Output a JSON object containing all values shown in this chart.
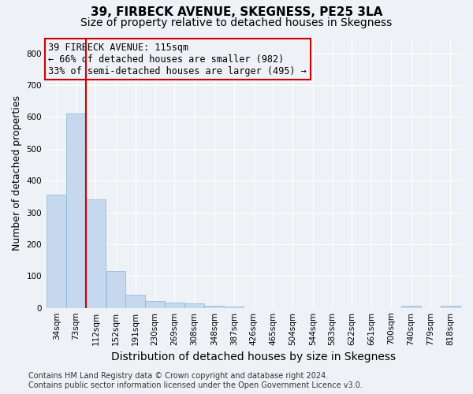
{
  "title": "39, FIRBECK AVENUE, SKEGNESS, PE25 3LA",
  "subtitle": "Size of property relative to detached houses in Skegness",
  "xlabel": "Distribution of detached houses by size in Skegness",
  "ylabel": "Number of detached properties",
  "footer1": "Contains HM Land Registry data © Crown copyright and database right 2024.",
  "footer2": "Contains public sector information licensed under the Open Government Licence v3.0.",
  "annotation_line1": "39 FIRBECK AVENUE: 115sqm",
  "annotation_line2": "← 66% of detached houses are smaller (982)",
  "annotation_line3": "33% of semi-detached houses are larger (495) →",
  "bar_color": "#c5d8ee",
  "bar_edge_color": "#8ab4d8",
  "vline_color": "#cc0000",
  "vline_x": 112,
  "bins_left": [
    34,
    73,
    112,
    152,
    191,
    230,
    269,
    308,
    348,
    387,
    426,
    465,
    504,
    544,
    583,
    622,
    661,
    700,
    740,
    779,
    818
  ],
  "counts": [
    357,
    612,
    340,
    115,
    42,
    22,
    17,
    13,
    7,
    5,
    0,
    0,
    0,
    0,
    0,
    0,
    0,
    0,
    7,
    0,
    7
  ],
  "bin_width": 39,
  "ylim": [
    0,
    850
  ],
  "yticks": [
    0,
    100,
    200,
    300,
    400,
    500,
    600,
    700,
    800
  ],
  "background_color": "#eef2f7",
  "grid_color": "#ffffff",
  "title_fontsize": 11,
  "subtitle_fontsize": 10,
  "ylabel_fontsize": 9,
  "xlabel_fontsize": 10,
  "tick_fontsize": 7.5,
  "annotation_fontsize": 8.5,
  "footer_fontsize": 7
}
